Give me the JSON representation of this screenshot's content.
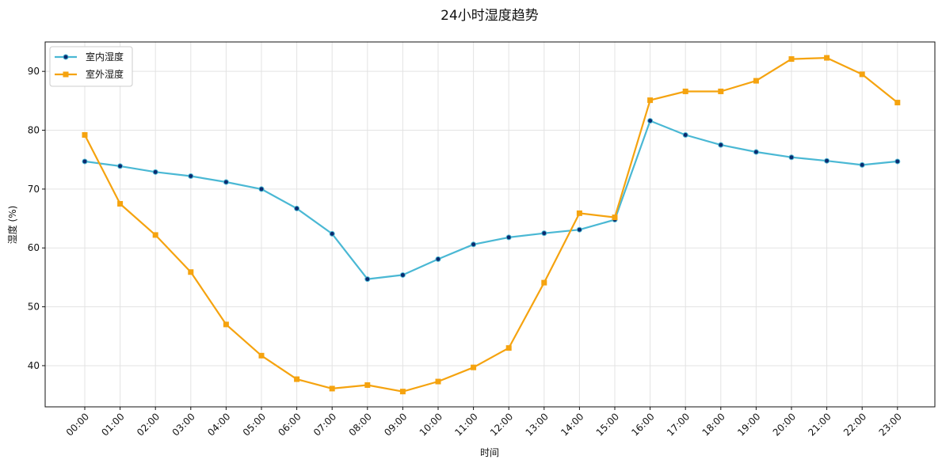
{
  "chart_data": {
    "type": "line",
    "title": "24小时湿度趋势",
    "xlabel": "时间",
    "ylabel": "湿度 (%)",
    "categories": [
      "00:00",
      "01:00",
      "02:00",
      "03:00",
      "04:00",
      "05:00",
      "06:00",
      "07:00",
      "08:00",
      "09:00",
      "10:00",
      "11:00",
      "12:00",
      "13:00",
      "14:00",
      "15:00",
      "16:00",
      "17:00",
      "18:00",
      "19:00",
      "20:00",
      "21:00",
      "22:00",
      "23:00"
    ],
    "yticks": [
      40,
      50,
      60,
      70,
      80,
      90
    ],
    "ylim": [
      33,
      95
    ],
    "grid": true,
    "legend_position": "top-left",
    "series": [
      {
        "name": "室内湿度",
        "color": "#4ab8d4",
        "marker": "circle",
        "marker_face": "#0b2a6f",
        "values": [
          74.7,
          73.9,
          72.9,
          72.2,
          71.2,
          70.0,
          66.7,
          62.4,
          54.7,
          55.4,
          58.1,
          60.6,
          61.8,
          62.5,
          63.1,
          64.8,
          81.6,
          79.2,
          77.5,
          76.3,
          75.4,
          74.8,
          74.1,
          74.7
        ]
      },
      {
        "name": "室外湿度",
        "color": "#f5a30f",
        "marker": "square",
        "marker_face": "#f5a30f",
        "values": [
          79.2,
          67.5,
          62.2,
          55.9,
          47.0,
          41.7,
          37.7,
          36.1,
          36.7,
          35.6,
          37.3,
          39.7,
          43.0,
          54.1,
          65.9,
          65.2,
          85.1,
          86.6,
          86.6,
          88.4,
          92.1,
          92.3,
          89.5,
          84.7
        ]
      }
    ]
  }
}
